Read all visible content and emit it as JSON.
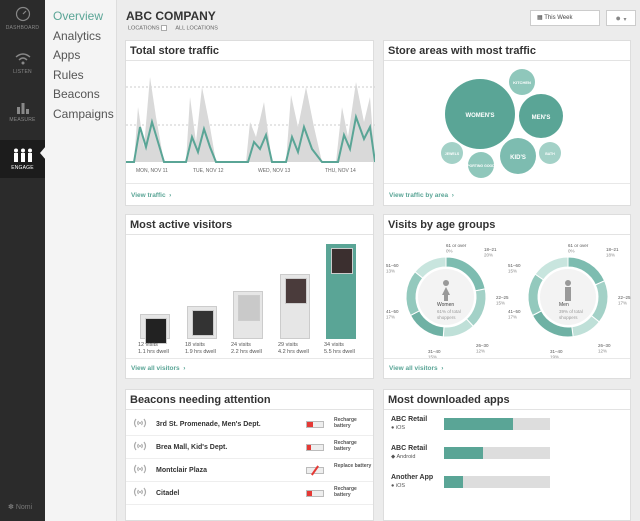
{
  "rail": [
    {
      "label": "DASHBOARD",
      "icon": "dashboard-icon"
    },
    {
      "label": "LISTEN",
      "icon": "wifi-icon"
    },
    {
      "label": "MEASURE",
      "icon": "bar-chart-icon"
    },
    {
      "label": "ENGAGE",
      "icon": "people-icon",
      "active": true
    }
  ],
  "brand": "Nomi",
  "submenu": [
    "Overview",
    "Analytics",
    "Apps",
    "Rules",
    "Beacons",
    "Campaigns"
  ],
  "header": {
    "company": "ABC COMPANY",
    "locations_label": "LOCATIONS",
    "locations_value": "ALL LOCATIONS",
    "date_range": "This Week",
    "user_icon": "user-icon"
  },
  "traffic": {
    "title": "Total store traffic",
    "dates": [
      "MON, NOV 11",
      "TUE, NOV 12",
      "WED, NOV 13",
      "THU, NOV 14"
    ],
    "link": "View traffic"
  },
  "areas": {
    "title": "Store areas with most traffic",
    "bubbles": [
      "WOMEN'S",
      "MEN'S",
      "KID'S",
      "KITCHEN",
      "JEWELS",
      "SPORTING GOODS",
      "BATH"
    ],
    "link": "View traffic by area"
  },
  "visitors": {
    "title": "Most active visitors",
    "items": [
      {
        "visits": "12 visits",
        "dwell": "1.1 hrs dwell",
        "level": 0.25
      },
      {
        "visits": "18 visits",
        "dwell": "1.9 hrs dwell",
        "level": 0.33
      },
      {
        "visits": "24 visits",
        "dwell": "2.2 hrs dwell",
        "level": 0.48
      },
      {
        "visits": "29 visits",
        "dwell": "4.2 hrs dwell",
        "level": 0.65
      },
      {
        "visits": "34 visits",
        "dwell": "5.5 hrs dwell",
        "level": 0.95
      }
    ],
    "link": "View all visitors"
  },
  "age": {
    "title": "Visits by age groups",
    "charts": [
      {
        "gender": "Women",
        "note": "61% of total shoppers",
        "segments": [
          {
            "range": "61 or over",
            "pct": "0%"
          },
          {
            "range": "18–21",
            "pct": "20%"
          },
          {
            "range": "22–25",
            "pct": "15%"
          },
          {
            "range": "26–30",
            "pct": "12%"
          },
          {
            "range": "31–40",
            "pct": "15%"
          },
          {
            "range": "41–50",
            "pct": "17%"
          },
          {
            "range": "51–60",
            "pct": "13%"
          }
        ]
      },
      {
        "gender": "Men",
        "note": "39% of total shoppers",
        "segments": [
          {
            "range": "61 or over",
            "pct": "0%"
          },
          {
            "range": "18–21",
            "pct": "18%"
          },
          {
            "range": "22–25",
            "pct": "17%"
          },
          {
            "range": "26–30",
            "pct": "12%"
          },
          {
            "range": "31–40",
            "pct": "19%"
          },
          {
            "range": "41–50",
            "pct": "17%"
          },
          {
            "range": "51–60",
            "pct": "15%"
          }
        ]
      }
    ],
    "link": "View all visitors"
  },
  "beacons": {
    "title": "Beacons needing attention",
    "items": [
      {
        "name": "3rd St. Promenade, Men's Dept.",
        "note": "Recharge battery",
        "level": 0.35
      },
      {
        "name": "Brea Mall, Kid's Dept.",
        "note": "Recharge battery",
        "level": 0.25
      },
      {
        "name": "Montclair Plaza",
        "note": "Replace battery",
        "level": 0.0
      },
      {
        "name": "Citadel",
        "note": "Recharge battery",
        "level": 0.3
      }
    ]
  },
  "apps": {
    "title": "Most downloaded apps",
    "items": [
      {
        "name": "ABC Retail",
        "os": "iOS",
        "share": 0.65
      },
      {
        "name": "ABC Retail",
        "os": "Android",
        "share": 0.37
      },
      {
        "name": "Another App",
        "os": "iOS",
        "share": 0.18
      }
    ]
  },
  "colors": {
    "accent": "#5aa596",
    "rail": "#2b2b2b",
    "alert": "#e53935"
  }
}
